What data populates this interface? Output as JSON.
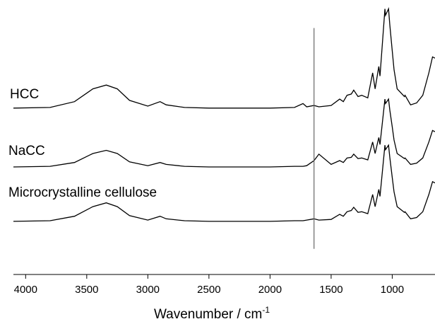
{
  "chart_data": {
    "type": "line",
    "x_label": {
      "text": "Wavenumber / cm",
      "superscript": "-1"
    },
    "x": [
      4100,
      3800,
      3600,
      3450,
      3340,
      3250,
      3150,
      3000,
      2900,
      2850,
      2700,
      2500,
      2360,
      2000,
      1800,
      1730,
      1700,
      1640,
      1600,
      1500,
      1430,
      1400,
      1370,
      1335,
      1315,
      1280,
      1250,
      1200,
      1160,
      1140,
      1110,
      1100,
      1060,
      1055,
      1030,
      1020,
      1000,
      985,
      960,
      900,
      895,
      850,
      800,
      750,
      700,
      670,
      650
    ],
    "series": [
      {
        "name": "HCC",
        "color": "#000000",
        "values": [
          2.6,
          2.61,
          2.7,
          2.9,
          2.96,
          2.9,
          2.72,
          2.63,
          2.7,
          2.65,
          2.61,
          2.6,
          2.6,
          2.6,
          2.61,
          2.67,
          2.62,
          2.64,
          2.62,
          2.64,
          2.74,
          2.7,
          2.8,
          2.82,
          2.88,
          2.78,
          2.8,
          2.76,
          3.15,
          2.9,
          3.25,
          3.1,
          4.15,
          4.05,
          4.15,
          3.9,
          3.5,
          3.2,
          2.9,
          2.78,
          2.8,
          2.65,
          2.68,
          2.8,
          3.15,
          3.4,
          3.38
        ]
      },
      {
        "name": "NaCC",
        "color": "#000000",
        "values": [
          1.68,
          1.69,
          1.75,
          1.89,
          1.94,
          1.89,
          1.76,
          1.7,
          1.75,
          1.72,
          1.69,
          1.68,
          1.68,
          1.68,
          1.69,
          1.69,
          1.7,
          1.78,
          1.88,
          1.72,
          1.78,
          1.75,
          1.82,
          1.83,
          1.88,
          1.81,
          1.82,
          1.79,
          2.07,
          1.89,
          2.14,
          2.03,
          2.74,
          2.67,
          2.74,
          2.57,
          2.31,
          2.1,
          1.89,
          1.81,
          1.82,
          1.72,
          1.74,
          1.82,
          2.07,
          2.25,
          2.23
        ]
      },
      {
        "name": "Microcrystalline cellulose",
        "color": "#000000",
        "values": [
          0.83,
          0.84,
          0.91,
          1.06,
          1.12,
          1.06,
          0.92,
          0.85,
          0.91,
          0.87,
          0.84,
          0.83,
          0.83,
          0.83,
          0.84,
          0.84,
          0.85,
          0.87,
          0.85,
          0.86,
          0.94,
          0.91,
          0.98,
          1.0,
          1.05,
          0.97,
          0.98,
          0.95,
          1.25,
          1.06,
          1.33,
          1.22,
          2.02,
          1.95,
          2.02,
          1.83,
          1.52,
          1.29,
          1.06,
          0.97,
          0.98,
          0.87,
          0.89,
          0.98,
          1.25,
          1.45,
          1.43
        ]
      }
    ],
    "xlim": [
      4100,
      650
    ],
    "xticks": [
      4000,
      3500,
      3000,
      2500,
      2000,
      1500,
      1000
    ],
    "ylim": [
      0,
      4.2
    ],
    "reference_line": {
      "x": 1640,
      "y": [
        0.4,
        3.85
      ],
      "color": "#666666"
    }
  }
}
